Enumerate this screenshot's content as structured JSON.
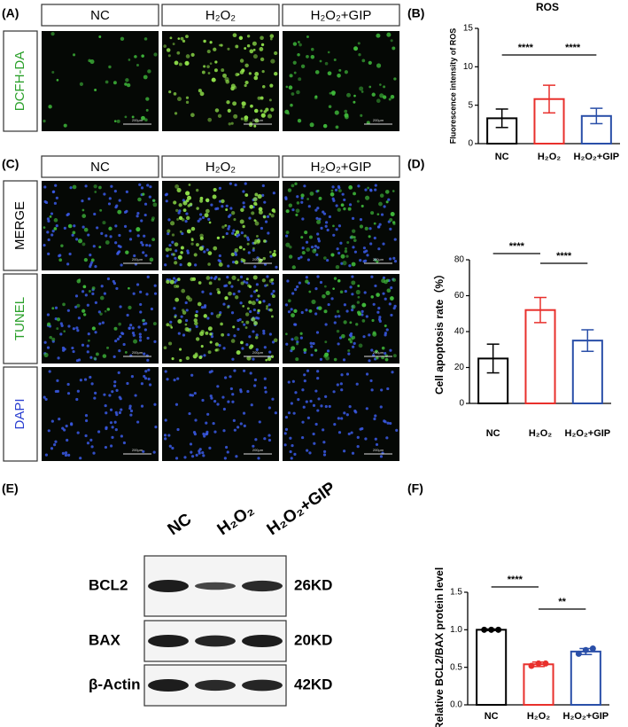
{
  "panels": [
    "(A)",
    "(B)",
    "(C)",
    "(D)",
    "(E)",
    "(F)"
  ],
  "imaging": {
    "groups": [
      "NC",
      "H₂O₂",
      "H₂O₂+GIP"
    ],
    "rows_a": [
      "DCFH-DA"
    ],
    "rows_c": [
      "MERGE",
      "TUNEL",
      "DAPI"
    ],
    "scale_bar": "200μm"
  },
  "western": {
    "lanes": [
      "NC",
      "H₂O₂",
      "H₂O₂+GIP"
    ],
    "bands": [
      {
        "name": "BCL2",
        "size": "26KD"
      },
      {
        "name": "BAX",
        "size": "20KD"
      },
      {
        "name": "β-Actin",
        "size": "42KD"
      }
    ]
  },
  "chart_data": [
    {
      "type": "bar",
      "title": "ROS",
      "y_label": "Fluorescence intensity of ROS",
      "categories": [
        "NC",
        "H₂O₂",
        "H₂O₂+GIP"
      ],
      "values": [
        3.3,
        5.8,
        3.6
      ],
      "errors": [
        1.2,
        1.8,
        1.0
      ],
      "colors": [
        "#000000",
        "#e8302c",
        "#2a4fa8"
      ],
      "ylim": [
        0,
        15
      ],
      "yticks": [
        0,
        5,
        10,
        15
      ],
      "annotations": [
        "****",
        "****"
      ]
    },
    {
      "type": "bar",
      "y_label": "Cell apoptosis rate（%）",
      "categories": [
        "NC",
        "H₂O₂",
        "H₂O₂+GIP"
      ],
      "values": [
        25,
        52,
        35
      ],
      "errors": [
        8,
        7,
        6
      ],
      "colors": [
        "#000000",
        "#e8302c",
        "#2a4fa8"
      ],
      "ylim": [
        0,
        80
      ],
      "yticks": [
        0,
        20,
        40,
        60,
        80
      ],
      "annotations": [
        "****",
        "****"
      ]
    },
    {
      "type": "bar",
      "y_label": "Relative BCL2/BAX protein level",
      "categories": [
        "NC",
        "H₂O₂",
        "H₂O₂+GIP"
      ],
      "values": [
        1.0,
        0.54,
        0.71
      ],
      "errors": [
        0.01,
        0.03,
        0.04
      ],
      "points": [
        [
          1.0,
          1.0,
          1.0
        ],
        [
          0.52,
          0.55,
          0.55
        ],
        [
          0.68,
          0.73,
          0.75
        ]
      ],
      "colors": [
        "#000000",
        "#e8302c",
        "#2a4fa8"
      ],
      "ylim": [
        0,
        1.5
      ],
      "yticks": [
        {
          "value": 0,
          "label": "0.0"
        },
        {
          "value": 0.5,
          "label": "0.5"
        },
        {
          "value": 1,
          "label": "1.0"
        },
        {
          "value": 1.5,
          "label": "1.5"
        }
      ],
      "annotations": [
        "****",
        "**"
      ]
    }
  ]
}
